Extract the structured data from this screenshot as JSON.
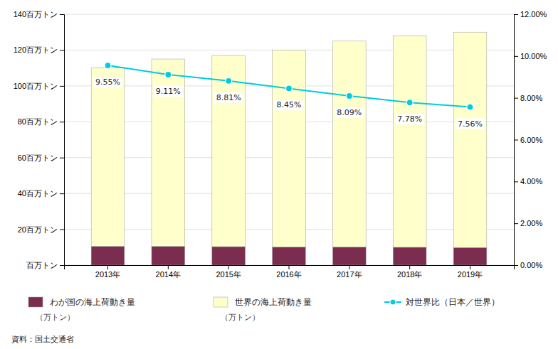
{
  "chart_data": {
    "type": "bar",
    "stacked": true,
    "grid": true,
    "categories": [
      "2013年",
      "2014年",
      "2015年",
      "2016年",
      "2017年",
      "2018年",
      "2019年"
    ],
    "series": [
      {
        "name": "わが国の海上荷動き量",
        "type": "bar",
        "color": "#7B2D50",
        "values": [
          10.5,
          10.48,
          10.31,
          10.14,
          10.12,
          9.96,
          9.83
        ]
      },
      {
        "name": "世界の海上荷動き量",
        "type": "bar",
        "color": "#FFFFCC",
        "values": [
          99.5,
          104.52,
          106.69,
          109.86,
          114.88,
          118.04,
          120.17
        ]
      },
      {
        "name": "対世界比（日本／世界）",
        "type": "line",
        "axis": "y2",
        "color": "#00CCDD",
        "marker": "circle",
        "data_labels": true,
        "values": [
          9.55,
          9.11,
          8.81,
          8.45,
          8.09,
          7.78,
          7.56
        ],
        "value_labels": [
          "9.55%",
          "9.11%",
          "8.81%",
          "8.45%",
          "8.09%",
          "7.78%",
          "7.56%"
        ]
      }
    ],
    "ylim": [
      0,
      140
    ],
    "yticks": [
      {
        "value": 0,
        "label": "百万トン"
      },
      {
        "value": 20,
        "label": "20百万トン"
      },
      {
        "value": 40,
        "label": "40百万トン"
      },
      {
        "value": 60,
        "label": "60百万トン"
      },
      {
        "value": 80,
        "label": "80百万トン"
      },
      {
        "value": 100,
        "label": "100百万トン"
      },
      {
        "value": 120,
        "label": "120百万トン"
      },
      {
        "value": 140,
        "label": "140百万トン"
      }
    ],
    "y2lim": [
      0,
      12
    ],
    "y2ticks": [
      {
        "value": 0,
        "label": "0.00%"
      },
      {
        "value": 2,
        "label": "2.00%"
      },
      {
        "value": 4,
        "label": "4.00%"
      },
      {
        "value": 6,
        "label": "6.00%"
      },
      {
        "value": 8,
        "label": "8.00%"
      },
      {
        "value": 10,
        "label": "10.00%"
      },
      {
        "value": 12,
        "label": "12.00%"
      }
    ],
    "annotations": [
      "（万トン）",
      "（万トン）"
    ],
    "source": "資料：国土交通省"
  }
}
